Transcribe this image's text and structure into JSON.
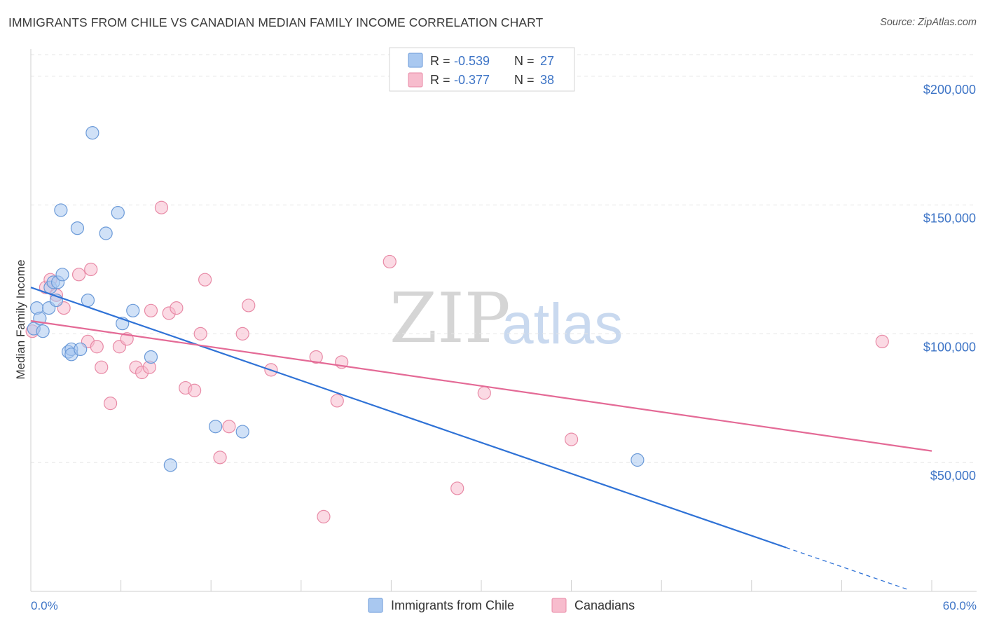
{
  "header": {
    "title": "IMMIGRANTS FROM CHILE VS CANADIAN MEDIAN FAMILY INCOME CORRELATION CHART",
    "source": "Source: ZipAtlas.com"
  },
  "watermark": {
    "zip": "ZIP",
    "atlas": "atlas"
  },
  "colors": {
    "blue_fill": "#a9c8f0",
    "blue_stroke": "#6b9ad8",
    "blue_line": "#2f72d6",
    "pink_fill": "#f7bccd",
    "pink_stroke": "#e88aa6",
    "pink_line": "#e46a96",
    "tick_text": "#3d74c6"
  },
  "legend": {
    "r_label": "R =",
    "n_label": "N =",
    "rows": [
      {
        "series": "Immigrants from Chile",
        "r": "-0.539",
        "n": "27"
      },
      {
        "series": "Canadians",
        "r": "-0.377",
        "n": "38"
      }
    ]
  },
  "chart_data": {
    "type": "scatter",
    "title": "IMMIGRANTS FROM CHILE VS CANADIAN MEDIAN FAMILY INCOME CORRELATION CHART",
    "xlabel": "",
    "ylabel": "Median Family Income",
    "xlim": [
      0,
      60
    ],
    "ylim": [
      0,
      210000
    ],
    "x_tick_labels": [
      "0.0%",
      "60.0%"
    ],
    "y_ticks": [
      {
        "value": 50000,
        "label": "$50,000"
      },
      {
        "value": 100000,
        "label": "$100,000"
      },
      {
        "value": 150000,
        "label": "$150,000"
      },
      {
        "value": 200000,
        "label": "$200,000"
      }
    ],
    "grid": true,
    "series": [
      {
        "name": "Immigrants from Chile",
        "color": "blue",
        "points": [
          [
            0.2,
            102000
          ],
          [
            0.4,
            110000
          ],
          [
            0.6,
            106000
          ],
          [
            0.8,
            101000
          ],
          [
            1.2,
            110000
          ],
          [
            1.3,
            118000
          ],
          [
            1.5,
            120000
          ],
          [
            1.8,
            120000
          ],
          [
            1.7,
            113000
          ],
          [
            2.0,
            148000
          ],
          [
            2.1,
            123000
          ],
          [
            2.5,
            93000
          ],
          [
            2.7,
            94000
          ],
          [
            2.7,
            92000
          ],
          [
            3.1,
            141000
          ],
          [
            3.3,
            94000
          ],
          [
            3.8,
            113000
          ],
          [
            4.1,
            178000
          ],
          [
            5.0,
            139000
          ],
          [
            5.8,
            147000
          ],
          [
            6.1,
            104000
          ],
          [
            6.8,
            109000
          ],
          [
            8.0,
            91000
          ],
          [
            9.3,
            49000
          ],
          [
            12.3,
            64000
          ],
          [
            14.1,
            62000
          ],
          [
            40.4,
            51000
          ]
        ],
        "trend": {
          "x0": 0,
          "y0": 118000,
          "x1": 50.3,
          "y1": 17000,
          "dashed_to_x": 58.5
        }
      },
      {
        "name": "Canadians",
        "color": "pink",
        "points": [
          [
            0.1,
            101000
          ],
          [
            1.0,
            118000
          ],
          [
            1.3,
            121000
          ],
          [
            1.7,
            115000
          ],
          [
            2.2,
            110000
          ],
          [
            4.0,
            125000
          ],
          [
            3.2,
            123000
          ],
          [
            3.8,
            97000
          ],
          [
            4.4,
            95000
          ],
          [
            4.7,
            87000
          ],
          [
            5.3,
            73000
          ],
          [
            5.9,
            95000
          ],
          [
            6.4,
            98000
          ],
          [
            7.0,
            87000
          ],
          [
            7.4,
            85000
          ],
          [
            7.9,
            87000
          ],
          [
            8.0,
            109000
          ],
          [
            8.7,
            149000
          ],
          [
            9.2,
            108000
          ],
          [
            9.7,
            110000
          ],
          [
            10.3,
            79000
          ],
          [
            10.9,
            78000
          ],
          [
            11.3,
            100000
          ],
          [
            11.6,
            121000
          ],
          [
            12.6,
            52000
          ],
          [
            13.2,
            64000
          ],
          [
            14.1,
            100000
          ],
          [
            14.5,
            111000
          ],
          [
            16.0,
            86000
          ],
          [
            19.0,
            91000
          ],
          [
            19.5,
            29000
          ],
          [
            20.4,
            74000
          ],
          [
            20.7,
            89000
          ],
          [
            23.9,
            128000
          ],
          [
            28.4,
            40000
          ],
          [
            30.2,
            77000
          ],
          [
            36.0,
            59000
          ],
          [
            56.7,
            97000
          ]
        ],
        "trend": {
          "x0": 0,
          "y0": 105000,
          "x1": 60,
          "y1": 54500
        }
      }
    ]
  }
}
